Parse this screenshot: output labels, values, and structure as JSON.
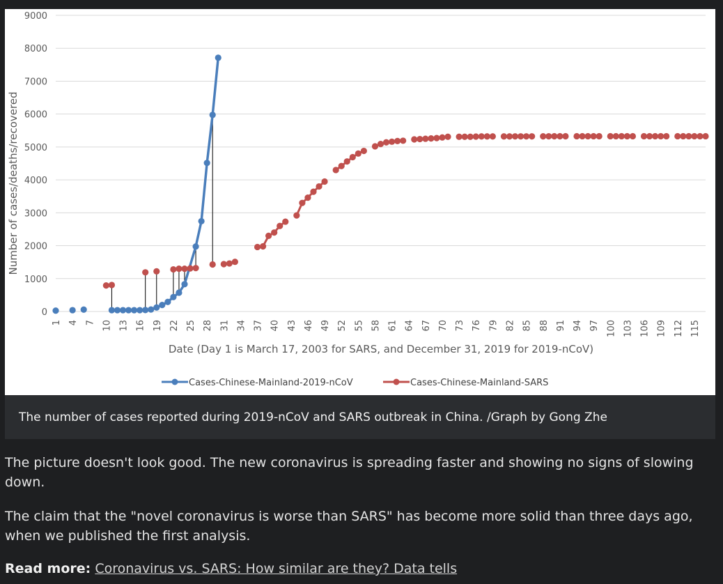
{
  "caption": "The number of cases reported during 2019-nCoV and SARS outbreak in China. /Graph by Gong Zhe",
  "paragraphs": [
    "The picture doesn't look good. The new coronavirus is spreading faster and showing no signs of slowing down.",
    "The claim that the \"novel coronavirus is worse than SARS\" has become more solid than three days ago, when we published the first analysis."
  ],
  "read_more": {
    "label": "Read more:",
    "link_text": "Coronavirus vs. SARS: How similar are they? Data tells"
  },
  "colors": {
    "ncov": "#4a7ebb",
    "sars": "#c0504d",
    "grid": "#d9d9d9"
  },
  "chart_data": {
    "type": "line",
    "xlabel": "Date (Day 1 is March 17, 2003 for SARS, and December 31, 2019 for 2019-nCoV)",
    "ylabel": "Number of cases/deaths/recovered",
    "ylim": [
      0,
      9000
    ],
    "yticks": [
      0,
      1000,
      2000,
      3000,
      4000,
      5000,
      6000,
      7000,
      8000,
      9000
    ],
    "xticks": [
      1,
      4,
      7,
      10,
      13,
      16,
      19,
      22,
      25,
      28,
      31,
      34,
      37,
      40,
      43,
      46,
      49,
      52,
      55,
      58,
      61,
      64,
      67,
      70,
      73,
      76,
      79,
      82,
      85,
      88,
      91,
      94,
      97,
      100,
      103,
      106,
      109,
      112,
      115
    ],
    "xlim": [
      1,
      117
    ],
    "grid": true,
    "legend_position": "bottom",
    "series": [
      {
        "name": "Cases-Chinese-Mainland-2019-nCoV",
        "color": "#4a7ebb",
        "points": [
          [
            1,
            27
          ],
          [
            4,
            41
          ],
          [
            6,
            59
          ],
          [
            11,
            41
          ],
          [
            12,
            41
          ],
          [
            13,
            41
          ],
          [
            14,
            41
          ],
          [
            15,
            41
          ],
          [
            16,
            41
          ],
          [
            17,
            45
          ],
          [
            18,
            62
          ],
          [
            19,
            121
          ],
          [
            20,
            198
          ],
          [
            21,
            291
          ],
          [
            22,
            440
          ],
          [
            23,
            571
          ],
          [
            24,
            830
          ],
          [
            26,
            1975
          ],
          [
            27,
            2744
          ],
          [
            28,
            4515
          ],
          [
            29,
            5974
          ],
          [
            30,
            7711
          ]
        ]
      },
      {
        "name": "Cases-Chinese-Mainland-SARS",
        "color": "#c0504d",
        "points": [
          [
            10,
            792
          ],
          [
            11,
            806
          ],
          [
            17,
            1190
          ],
          [
            19,
            1220
          ],
          [
            22,
            1280
          ],
          [
            23,
            1300
          ],
          [
            24,
            1300
          ],
          [
            25,
            1310
          ],
          [
            26,
            1320
          ],
          [
            29,
            1430
          ],
          [
            31,
            1440
          ],
          [
            32,
            1460
          ],
          [
            33,
            1510
          ],
          [
            37,
            1960
          ],
          [
            38,
            1980
          ],
          [
            39,
            2300
          ],
          [
            40,
            2400
          ],
          [
            41,
            2600
          ],
          [
            42,
            2730
          ],
          [
            44,
            2920
          ],
          [
            45,
            3300
          ],
          [
            46,
            3460
          ],
          [
            47,
            3640
          ],
          [
            48,
            3800
          ],
          [
            49,
            3950
          ],
          [
            51,
            4300
          ],
          [
            52,
            4420
          ],
          [
            53,
            4560
          ],
          [
            54,
            4690
          ],
          [
            55,
            4800
          ],
          [
            56,
            4880
          ],
          [
            58,
            5020
          ],
          [
            59,
            5090
          ],
          [
            60,
            5140
          ],
          [
            61,
            5160
          ],
          [
            62,
            5180
          ],
          [
            63,
            5190
          ],
          [
            65,
            5230
          ],
          [
            66,
            5240
          ],
          [
            67,
            5250
          ],
          [
            68,
            5260
          ],
          [
            69,
            5270
          ],
          [
            70,
            5290
          ],
          [
            71,
            5310
          ],
          [
            73,
            5310
          ],
          [
            74,
            5310
          ],
          [
            75,
            5310
          ],
          [
            76,
            5315
          ],
          [
            77,
            5320
          ],
          [
            78,
            5320
          ],
          [
            79,
            5320
          ],
          [
            81,
            5320
          ],
          [
            82,
            5320
          ],
          [
            83,
            5322
          ],
          [
            84,
            5322
          ],
          [
            85,
            5322
          ],
          [
            86,
            5322
          ],
          [
            88,
            5324
          ],
          [
            89,
            5325
          ],
          [
            90,
            5326
          ],
          [
            91,
            5326
          ],
          [
            92,
            5326
          ],
          [
            94,
            5327
          ],
          [
            95,
            5327
          ],
          [
            96,
            5327
          ],
          [
            97,
            5327
          ],
          [
            98,
            5327
          ],
          [
            100,
            5327
          ],
          [
            101,
            5327
          ],
          [
            102,
            5327
          ],
          [
            103,
            5327
          ],
          [
            104,
            5327
          ],
          [
            106,
            5327
          ],
          [
            107,
            5327
          ],
          [
            108,
            5327
          ],
          [
            109,
            5327
          ],
          [
            110,
            5327
          ],
          [
            112,
            5327
          ],
          [
            113,
            5327
          ],
          [
            114,
            5327
          ],
          [
            115,
            5327
          ],
          [
            116,
            5327
          ],
          [
            117,
            5327
          ]
        ]
      }
    ],
    "connectors": [
      [
        11,
        41,
        806
      ],
      [
        17,
        45,
        1190
      ],
      [
        19,
        121,
        1220
      ],
      [
        22,
        440,
        1280
      ],
      [
        23,
        571,
        1300
      ],
      [
        24,
        830,
        1300
      ],
      [
        26,
        1320,
        1975
      ],
      [
        29,
        1430,
        5974
      ]
    ]
  }
}
